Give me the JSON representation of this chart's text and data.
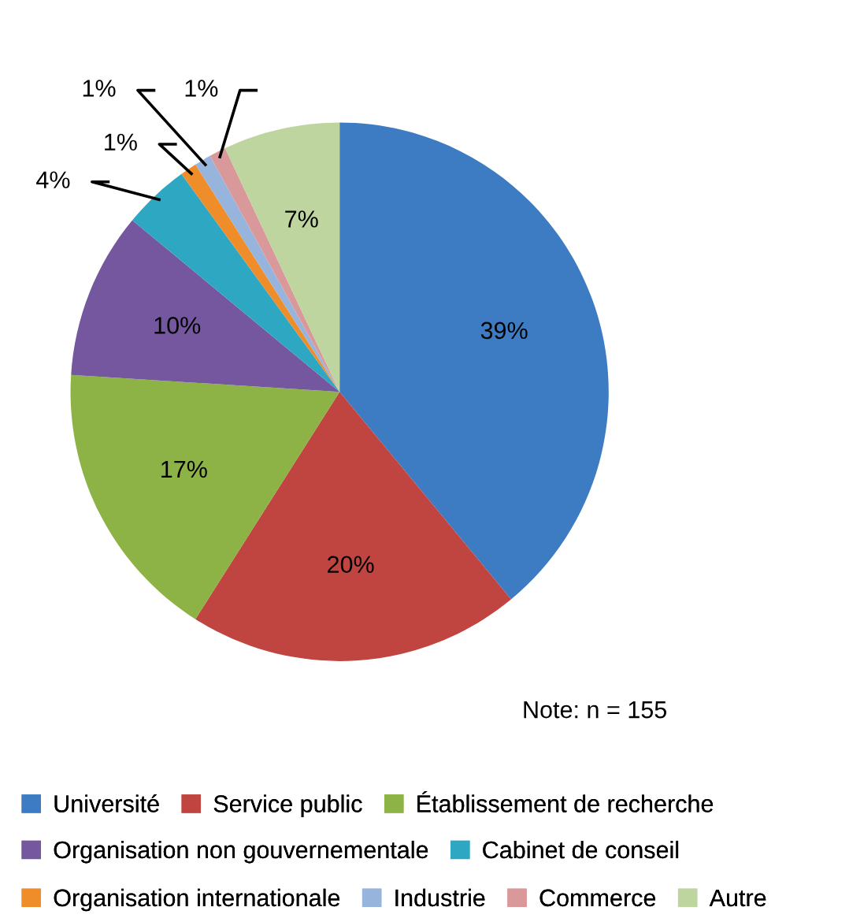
{
  "chart_data": {
    "type": "pie",
    "categories": [
      "Université",
      "Service public",
      "Établissement de recherche",
      "Organisation non gouvernementale",
      "Cabinet de conseil",
      "Organisation internationale",
      "Industrie",
      "Commerce",
      "Autre"
    ],
    "values": [
      39,
      20,
      17,
      10,
      4,
      1,
      1,
      1,
      7
    ],
    "colors": [
      "#3d7cc2",
      "#c0443f",
      "#8db245",
      "#74579f",
      "#2ea7c3",
      "#ef8d2a",
      "#97b4dc",
      "#d9999a",
      "#bfd59f"
    ],
    "value_labels": [
      "39%",
      "20%",
      "17%",
      "10%",
      "4%",
      "1%",
      "1%",
      "1%",
      "7%"
    ],
    "legend": "bottom",
    "annotations": [
      "Note: n = 155"
    ]
  }
}
